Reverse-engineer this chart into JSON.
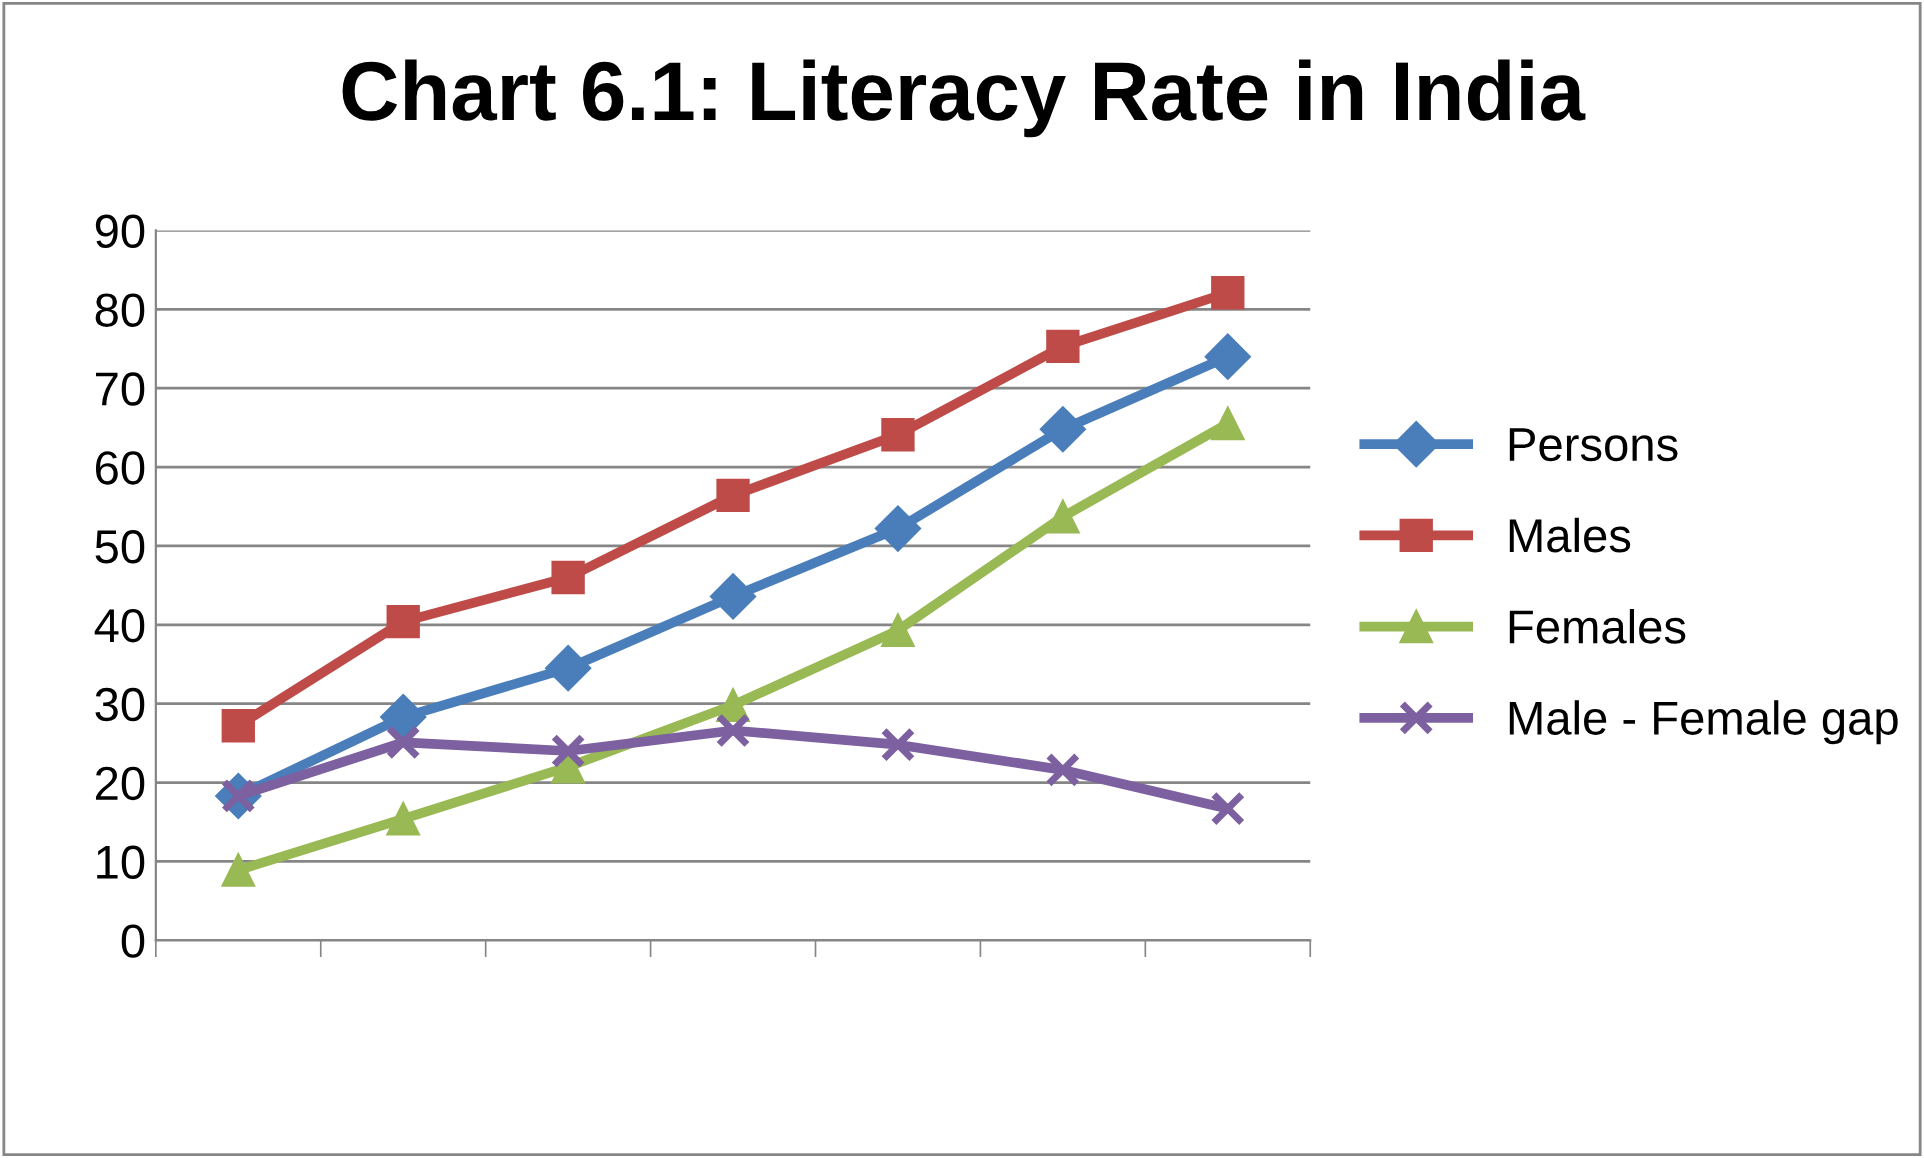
{
  "chart_data": {
    "type": "line",
    "title": "Chart 6.1: Literacy Rate in India",
    "categories": [
      null,
      null,
      null,
      null,
      null,
      null,
      null
    ],
    "series": [
      {
        "name": "Persons",
        "color": "#4a7ebb",
        "marker": "diamond",
        "values": [
          18.3,
          28.3,
          34.5,
          43.6,
          52.2,
          64.8,
          74.0
        ]
      },
      {
        "name": "Males",
        "color": "#be4b48",
        "marker": "square",
        "values": [
          27.2,
          40.4,
          46.0,
          56.4,
          64.1,
          75.3,
          82.1
        ]
      },
      {
        "name": "Females",
        "color": "#98b954",
        "marker": "triangle",
        "values": [
          8.9,
          15.4,
          22.0,
          29.8,
          39.3,
          53.7,
          65.5
        ]
      },
      {
        "name": "Male - Female gap",
        "color": "#7d60a0",
        "marker": "cross",
        "values": [
          18.3,
          25.1,
          24.0,
          26.6,
          24.8,
          21.6,
          16.7
        ]
      }
    ],
    "ylim": [
      0,
      90
    ],
    "yticks": [
      0,
      10,
      20,
      30,
      40,
      50,
      60,
      70,
      80,
      90
    ],
    "grid": "y",
    "legend": "right",
    "line_style": "solid"
  }
}
